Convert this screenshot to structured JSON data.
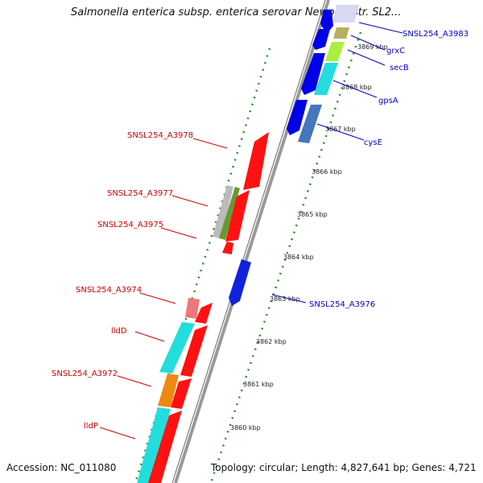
{
  "title": "Salmonella enterica subsp. enterica serovar Newport str. SL2...",
  "accession": "Accession: NC_011080",
  "topology": "Topology: circular; Length: 4,827,641 bp; Genes: 4,721",
  "colors": {
    "forward_label": "#0000cc",
    "reverse_label": "#cc0000",
    "backbone": "#999999",
    "tick_dots": "#2e8b2e"
  },
  "scale_ticks": [
    "3869 kbp",
    "3868 kbp",
    "3867 kbp",
    "3866 kbp",
    "3865 kbp",
    "3864 kbp",
    "3863 kbp",
    "3862 kbp",
    "3861 kbp",
    "3860 kbp"
  ],
  "forward_labels": [
    "SNSL254_A3983",
    "grxC",
    "secB",
    "gpsA",
    "cysE",
    "SNSL254_A3976"
  ],
  "reverse_labels": [
    "SNSL254_A3978",
    "SNSL254_A3977",
    "SNSL254_A3975",
    "SNSL254_A3974",
    "lldD",
    "SNSL254_A3972",
    "lldP"
  ]
}
